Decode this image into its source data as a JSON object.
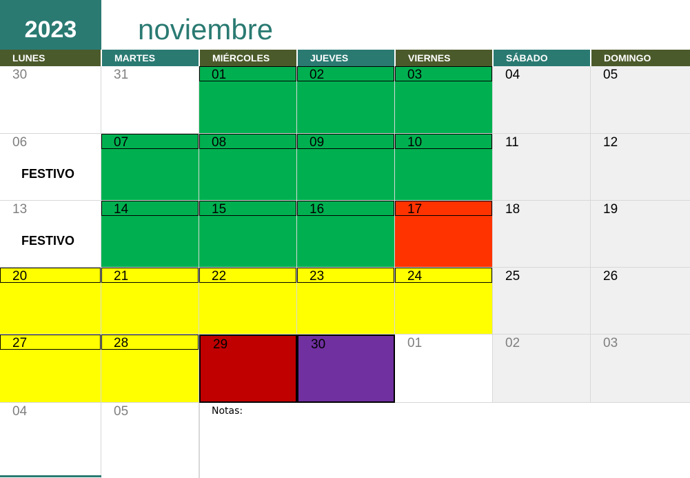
{
  "header": {
    "year": "2023",
    "month": "noviembre"
  },
  "weekdays": [
    "LUNES",
    "MARTES",
    "MIÉRCOLES",
    "JUEVES",
    "VIERNES",
    "SÁBADO",
    "DOMINGO"
  ],
  "colors": {
    "teal": "#2a7a72",
    "olive": "#4b5a2a",
    "green": "#00b050",
    "yellow": "#ffff00",
    "orange_red": "#ff3300",
    "dark_red": "#c00000",
    "purple": "#7030a0",
    "weekend_gray": "#f0f0f0"
  },
  "weeks": [
    [
      {
        "n": "30",
        "other": true,
        "fill": null
      },
      {
        "n": "31",
        "other": true,
        "fill": null
      },
      {
        "n": "01",
        "fill": "green",
        "bar": true
      },
      {
        "n": "02",
        "fill": "green",
        "bar": true
      },
      {
        "n": "03",
        "fill": "green",
        "bar": true
      },
      {
        "n": "04",
        "fill": "weekend"
      },
      {
        "n": "05",
        "fill": "weekend"
      }
    ],
    [
      {
        "n": "06",
        "other": true,
        "fill": null,
        "note": "FESTIVO"
      },
      {
        "n": "07",
        "fill": "green",
        "bar": true
      },
      {
        "n": "08",
        "fill": "green",
        "bar": true
      },
      {
        "n": "09",
        "fill": "green",
        "bar": true
      },
      {
        "n": "10",
        "fill": "green",
        "bar": true
      },
      {
        "n": "11",
        "fill": "weekend"
      },
      {
        "n": "12",
        "fill": "weekend"
      }
    ],
    [
      {
        "n": "13",
        "other": true,
        "fill": null,
        "note": "FESTIVO"
      },
      {
        "n": "14",
        "fill": "green",
        "bar": true
      },
      {
        "n": "15",
        "fill": "green",
        "bar": true
      },
      {
        "n": "16",
        "fill": "green",
        "bar": true
      },
      {
        "n": "17",
        "fill": "orange_red",
        "bar": true
      },
      {
        "n": "18",
        "fill": "weekend"
      },
      {
        "n": "19",
        "fill": "weekend"
      }
    ],
    [
      {
        "n": "20",
        "fill": "yellow",
        "bar": true
      },
      {
        "n": "21",
        "fill": "yellow",
        "bar": true
      },
      {
        "n": "22",
        "fill": "yellow",
        "bar": true
      },
      {
        "n": "23",
        "fill": "yellow",
        "bar": true
      },
      {
        "n": "24",
        "fill": "yellow",
        "bar": true
      },
      {
        "n": "25",
        "fill": "weekend"
      },
      {
        "n": "26",
        "fill": "weekend"
      }
    ],
    [
      {
        "n": "27",
        "fill": "yellow",
        "bar": true
      },
      {
        "n": "28",
        "fill": "yellow",
        "bar": true
      },
      {
        "n": "29",
        "fill": "dark_red",
        "bar": true,
        "boxed": true
      },
      {
        "n": "30",
        "fill": "purple",
        "bar": true,
        "boxed": true
      },
      {
        "n": "01",
        "other": true,
        "fill": null
      },
      {
        "n": "02",
        "other": true,
        "fill": "weekend"
      },
      {
        "n": "03",
        "other": true,
        "fill": "weekend"
      }
    ],
    [
      {
        "n": "04",
        "other": true,
        "fill": null
      },
      {
        "n": "05",
        "other": true,
        "fill": null
      }
    ]
  ],
  "notes_label": "Notas:"
}
